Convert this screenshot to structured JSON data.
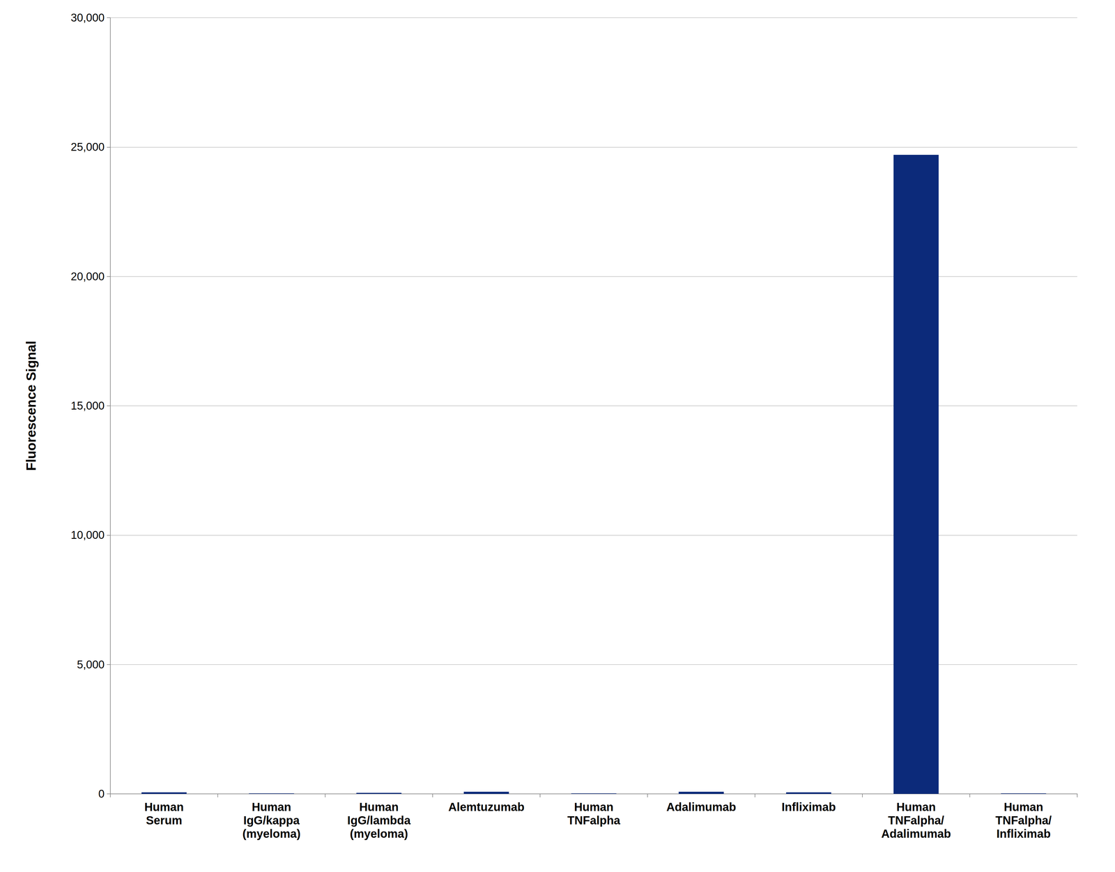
{
  "chart_data": {
    "type": "bar",
    "y_label": "Fluorescence Signal",
    "categories": [
      "Human\nSerum",
      "Human\nIgG/kappa\n(myeloma)",
      "Human\nIgG/lambda\n(myeloma)",
      "Alemtuzumab",
      "Human\nTNFalpha",
      "Adalimumab",
      "Infliximab",
      "Human\nTNFalpha/\nAdalimumab",
      "Human\nTNFalpha/\nInfliximab"
    ],
    "values": [
      60,
      20,
      40,
      80,
      20,
      80,
      60,
      24700,
      20
    ],
    "color": "#0c2a7a",
    "ylim": [
      0,
      30000
    ],
    "yticks": [
      0,
      {
        "value": 5000,
        "label": "5,000"
      },
      {
        "value": 10000,
        "label": "10,000"
      },
      {
        "value": 15000,
        "label": "15,000"
      },
      {
        "value": 20000,
        "label": "20,000"
      },
      {
        "value": 25000,
        "label": "25,000"
      },
      {
        "value": 30000,
        "label": "30,000"
      }
    ],
    "grid": true
  }
}
